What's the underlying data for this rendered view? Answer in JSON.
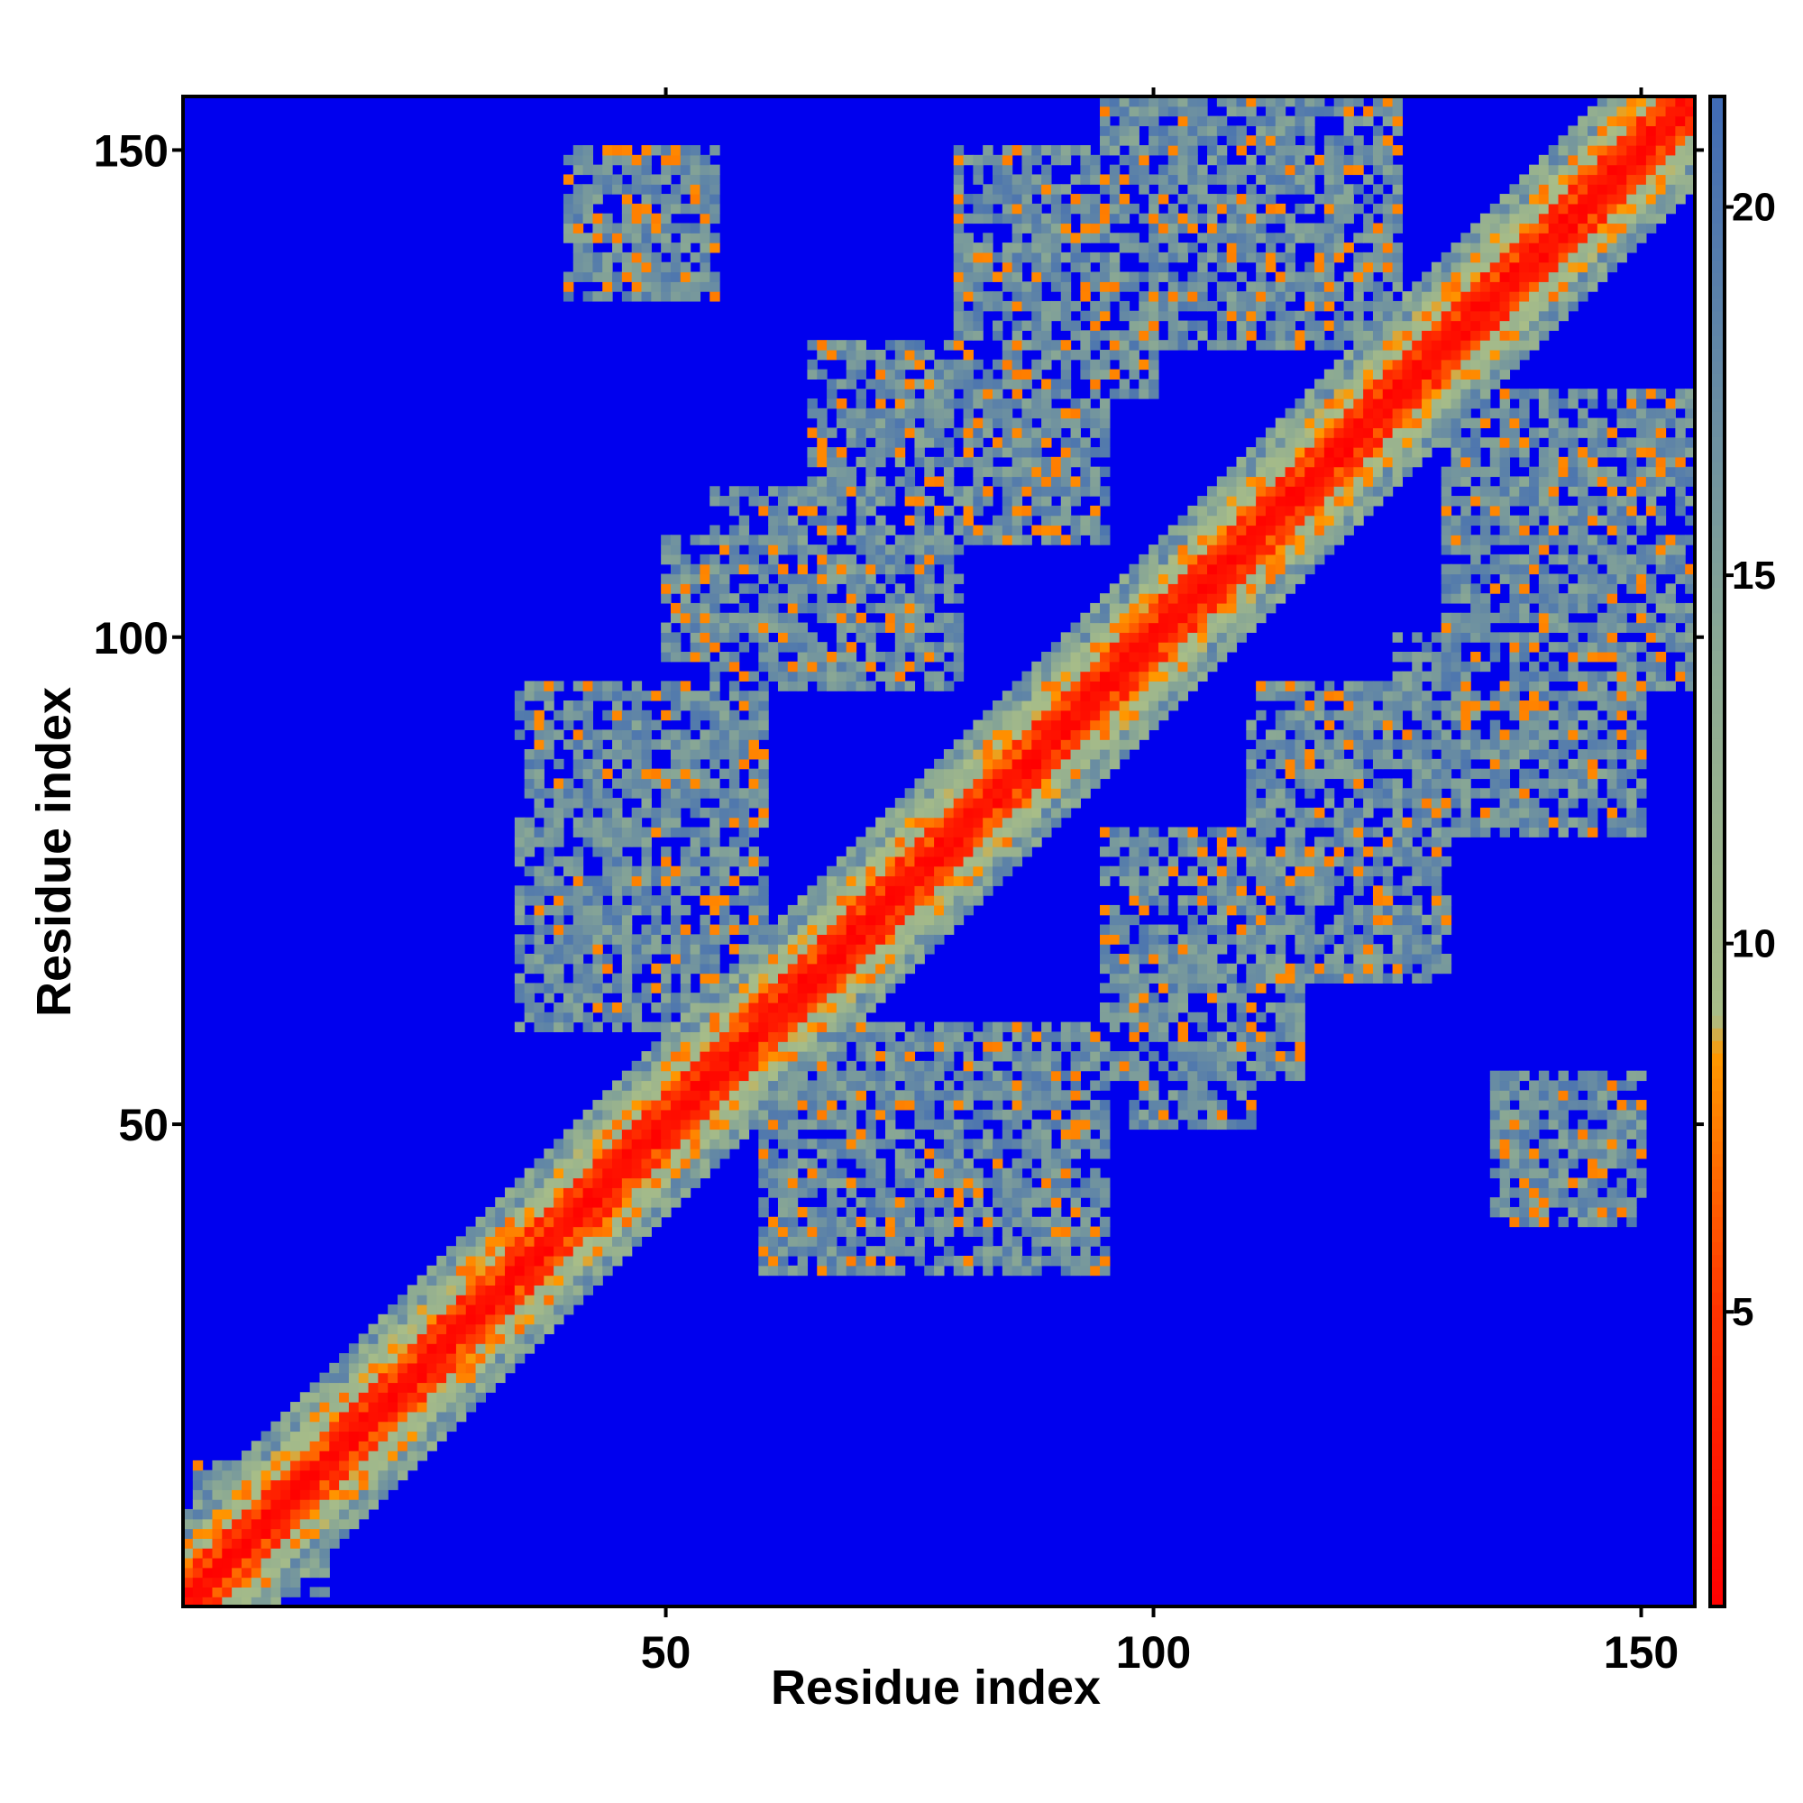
{
  "chart_data": {
    "type": "heatmap",
    "title": "",
    "xlabel": "Residue index",
    "ylabel": "Residue index",
    "xlim": [
      1,
      155
    ],
    "ylim": [
      1,
      155
    ],
    "x_ticks": [
      50,
      100,
      150
    ],
    "y_ticks": [
      50,
      100,
      150
    ],
    "grid": false,
    "colorbar": {
      "position": "right",
      "range": [
        1,
        21.5
      ],
      "ticks": [
        5,
        10,
        15,
        20
      ],
      "stops": [
        {
          "value": 1.0,
          "color": "#ff0000"
        },
        {
          "value": 5.0,
          "color": "#ff3300"
        },
        {
          "value": 8.5,
          "color": "#ff9900"
        },
        {
          "value": 9.0,
          "color": "#a8bd88"
        },
        {
          "value": 14.0,
          "color": "#8aa894"
        },
        {
          "value": 21.5,
          "color": "#3f6ab5"
        }
      ],
      "out_of_range_color": "#0000ee"
    },
    "contact_features": {
      "diagonal_band": [
        [
          1,
          1
        ],
        [
          155,
          155
        ]
      ],
      "contact_regions": [
        {
          "x": [
            35,
            48
          ],
          "y": [
            60,
            95
          ]
        },
        {
          "x": [
            50,
            65
          ],
          "y": [
            98,
            110
          ]
        },
        {
          "x": [
            65,
            80
          ],
          "y": [
            100,
            130
          ]
        },
        {
          "x": [
            80,
            100
          ],
          "y": [
            125,
            150
          ]
        },
        {
          "x": [
            100,
            125
          ],
          "y": [
            140,
            155
          ]
        },
        {
          "x": [
            60,
            95
          ],
          "y": [
            38,
            60
          ]
        },
        {
          "x": [
            95,
            115
          ],
          "y": [
            55,
            80
          ]
        },
        {
          "x": [
            110,
            135
          ],
          "y": [
            80,
            95
          ]
        },
        {
          "x": [
            130,
            155
          ],
          "y": [
            95,
            125
          ]
        },
        {
          "x": [
            135,
            150
          ],
          "y": [
            40,
            55
          ]
        },
        {
          "x": [
            2,
            15
          ],
          "y": [
            2,
            15
          ]
        }
      ]
    }
  }
}
